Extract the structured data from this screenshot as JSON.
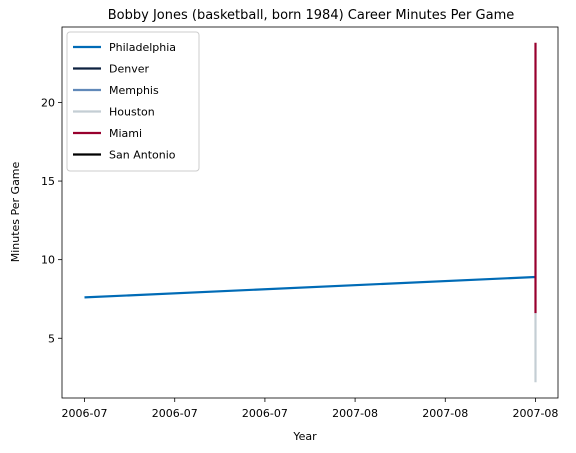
{
  "chart_data": {
    "type": "line",
    "title": "Bobby Jones (basketball, born 1984) Career Minutes Per Game",
    "xlabel": "Year",
    "ylabel": "Minutes Per Game",
    "x_tick_labels": [
      "2006-07",
      "2006-07",
      "2006-07",
      "2007-08",
      "2007-08",
      "2007-08"
    ],
    "x_ticks": [
      0,
      0.2,
      0.4,
      0.6,
      0.8,
      1.0
    ],
    "xlim": [
      -0.05,
      1.05
    ],
    "ylim": [
      1.2,
      24.8
    ],
    "y_ticks": [
      5,
      10,
      15,
      20
    ],
    "grid": false,
    "legend_position": "upper-left",
    "series": [
      {
        "name": "Philadelphia",
        "color": "#006bb6",
        "x": [
          0,
          1
        ],
        "y": [
          7.6,
          8.9
        ]
      },
      {
        "name": "Denver",
        "color": "#0d2240",
        "x": [],
        "y": []
      },
      {
        "name": "Memphis",
        "color": "#6189b9",
        "x": [],
        "y": []
      },
      {
        "name": "Houston",
        "color": "#c4ced4",
        "x": [
          1,
          1
        ],
        "y": [
          2.2,
          6.6
        ]
      },
      {
        "name": "Miami",
        "color": "#98002e",
        "x": [
          1,
          1
        ],
        "y": [
          6.6,
          23.8
        ]
      },
      {
        "name": "San Antonio",
        "color": "#000000",
        "x": [],
        "y": []
      }
    ]
  }
}
